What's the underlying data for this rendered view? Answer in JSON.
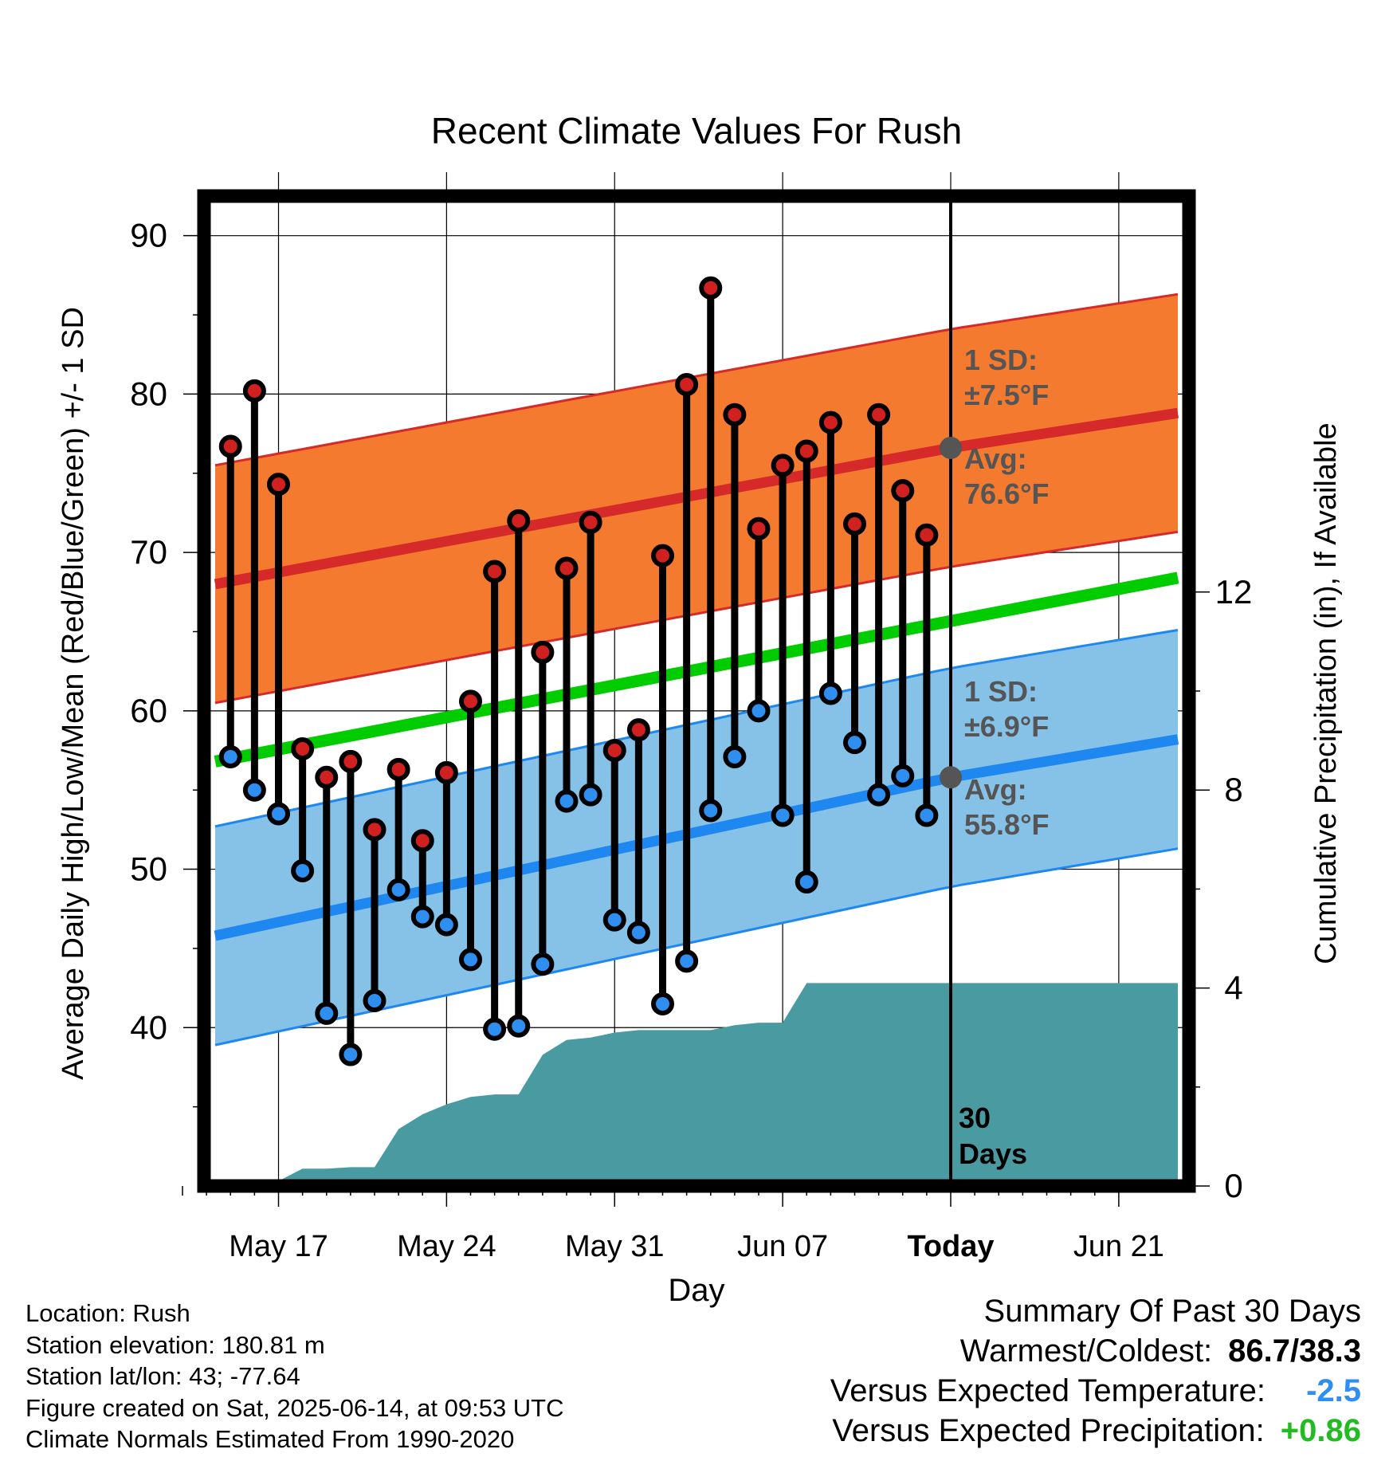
{
  "chart_data": {
    "type": "line",
    "title": "Recent Climate Values For Rush",
    "xlabel": "Day",
    "ylabel": "Average Daily High/Low/Mean (Red/Blue/Green) +/- 1 SD",
    "y2label": "Cumulative Precipitation (in), If Available",
    "ylim": [
      30,
      92.5
    ],
    "y2lim": [
      0,
      20
    ],
    "xlim": [
      -33,
      8
    ],
    "yticks": [
      "90",
      "80",
      "70",
      "60",
      "50",
      "40"
    ],
    "y2ticks": [
      "12",
      "8",
      "4",
      "0"
    ],
    "xticks": [
      {
        "offset": -28,
        "label": "May 17"
      },
      {
        "offset": -21,
        "label": "May 24"
      },
      {
        "offset": -14,
        "label": "May 31"
      },
      {
        "offset": -7,
        "label": "Jun 07"
      },
      {
        "offset": 0,
        "label": "Today"
      },
      {
        "offset": 7,
        "label": "Jun 21"
      }
    ],
    "colors": {
      "high_marker": "#d02020",
      "low_marker": "#2e8ff0",
      "high_band": "#f47a30",
      "high_mean": "#d62a2a",
      "low_band": "#86c2e8",
      "low_mean": "#1e88f0",
      "mean_line": "#00cc00",
      "precip": "#4a9aa2",
      "annotation": "#555555"
    },
    "normals": {
      "high_mean": {
        "start": 68.0,
        "today": 76.6,
        "end": 78.8
      },
      "high_sd": 7.5,
      "low_mean": {
        "start": 45.8,
        "today": 55.8,
        "end": 58.2
      },
      "low_sd": 6.9,
      "daily_mean": {
        "start": 56.8,
        "end": 68.4
      }
    },
    "daily_values": {
      "high": [
        76.7,
        80.2,
        74.3,
        57.6,
        55.8,
        56.8,
        52.5,
        56.3,
        51.8,
        56.1,
        60.6,
        68.8,
        72.0,
        63.7,
        69.0,
        71.9,
        57.5,
        58.8,
        69.8,
        80.6,
        86.7,
        78.7,
        71.5,
        75.5,
        76.4,
        78.2,
        71.8,
        78.7,
        73.9,
        71.1
      ],
      "low": [
        57.1,
        55.0,
        53.5,
        49.9,
        40.9,
        38.3,
        41.7,
        48.7,
        47.0,
        46.5,
        44.3,
        39.9,
        40.1,
        44.0,
        54.3,
        54.7,
        46.8,
        46.0,
        41.5,
        44.2,
        53.7,
        57.1,
        60.0,
        53.4,
        49.2,
        61.1,
        58.0,
        54.7,
        55.9,
        53.4
      ]
    },
    "precipitation": {
      "observed": [
        0.0,
        0.0,
        0.1,
        0.35,
        0.35,
        0.38,
        0.38,
        1.15,
        1.45,
        1.65,
        1.8,
        1.85,
        1.85,
        2.65,
        2.95,
        3.0,
        3.1,
        3.15,
        3.15,
        3.15,
        3.15,
        3.25,
        3.3,
        3.3,
        4.1,
        4.1,
        4.1,
        4.1,
        4.1,
        4.1,
        4.1
      ],
      "total_in": 4.1
    },
    "annotations": {
      "high_sd_label": "1 SD:",
      "high_sd_value": "±7.5°F",
      "high_avg_label": "Avg:",
      "high_avg_value": "76.6°F",
      "low_sd_label": "1 SD:",
      "low_sd_value": "±6.9°F",
      "low_avg_label": "Avg:",
      "low_avg_value": "55.8°F",
      "period_number": "30",
      "period_unit": "Days"
    }
  },
  "footer": {
    "location": "Location: Rush",
    "elevation": "Station elevation: 180.81 m",
    "latlon": "Station lat/lon: 43; -77.64",
    "created": "Figure created on Sat, 2025-06-14, at 09:53 UTC",
    "normals": "Climate Normals Estimated From 1990-2020"
  },
  "summary": {
    "title": "Summary Of Past 30 Days",
    "warmest_coldest_label": "Warmest/Coldest:",
    "warmest_coldest_value": "86.7/38.3",
    "temp_label": "Versus Expected Temperature:",
    "temp_value": "-2.5",
    "temp_color": "#2e8ff0",
    "precip_label": "Versus Expected Precipitation:",
    "precip_value": "+0.86",
    "precip_color": "#22bb22"
  }
}
